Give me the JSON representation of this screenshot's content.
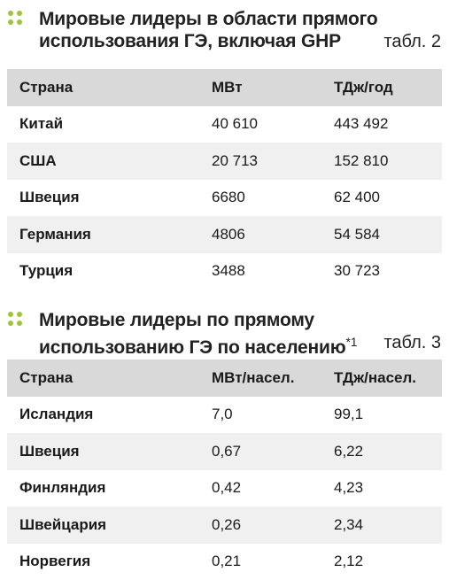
{
  "table2": {
    "title_line1": "Мировые лидеры в области прямого",
    "title_line2": "использования ГЭ, включая GHP",
    "label": "табл. 2",
    "headers": [
      "Страна",
      "МВт",
      "ТДж/год"
    ],
    "rows": [
      [
        "Китай",
        "40 610",
        "443 492"
      ],
      [
        "США",
        "20 713",
        "152 810"
      ],
      [
        "Швеция",
        "6680",
        "62 400"
      ],
      [
        "Германия",
        "4806",
        "54 584"
      ],
      [
        "Турция",
        "3488",
        "30 723"
      ]
    ]
  },
  "table3": {
    "title_line1": "Мировые лидеры по прямому",
    "title_line2": "использованию ГЭ по населению",
    "footnote_mark": "*1",
    "label": "табл. 3",
    "headers": [
      "Страна",
      "МВт/насел.",
      "ТДж/насел."
    ],
    "rows": [
      [
        "Исландия",
        "7,0",
        "99,1"
      ],
      [
        "Швеция",
        "0,67",
        "6,22"
      ],
      [
        "Финляндия",
        "0,42",
        "4,23"
      ],
      [
        "Швейцария",
        "0,26",
        "2,34"
      ],
      [
        "Норвегия",
        "0,21",
        "2,12"
      ]
    ]
  },
  "colors": {
    "accent_dots": "#9dc43b",
    "header_bg": "#d9d9d9",
    "stripe_bg": "#f0f0f0"
  }
}
